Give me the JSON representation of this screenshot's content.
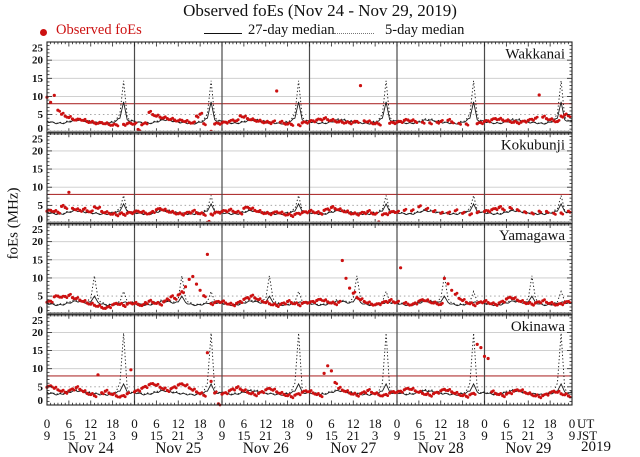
{
  "title": "Observed foEs (Nov 24 - Nov 29, 2019)",
  "legend": {
    "observed_label": "Observed foEs",
    "median27_label": "27-day median",
    "median5_label": "5-day median"
  },
  "axes": {
    "ylabel": "foEs (MHz)",
    "ut_label": "UT",
    "jst_label": "JST",
    "year_label": "2019",
    "y_tick_values": [
      0,
      5,
      10,
      15,
      20,
      25
    ],
    "ut_ticks_per_day": [
      "0",
      "6",
      "12",
      "18"
    ],
    "jst_ticks_per_day": [
      "9",
      "15",
      "21",
      "3"
    ],
    "ut_tick_last": "0",
    "jst_tick_last": "9",
    "day_labels": [
      "Nov 24",
      "Nov 25",
      "Nov 26",
      "Nov 27",
      "Nov 28",
      "Nov 29"
    ]
  },
  "colors": {
    "observed": "#cc1111",
    "threshold": "#b03535",
    "median": "#1a1a1a",
    "grid_solid": "#c9c9c9",
    "grid_dotted": "#9a9a9a",
    "separator_band": "#8f8f8f",
    "frame": "#222222",
    "day_separator": "#4a4a4a"
  },
  "chart_data": {
    "type": "scatter",
    "x_unit": "hours UT from 00:00 Nov 24 2019",
    "x_range_hours": [
      0,
      144
    ],
    "y_range_mhz": [
      0,
      25
    ],
    "cadence_hours": 1,
    "x_major_tick_interval_hours": 6,
    "day_separators_hours": [
      24,
      48,
      72,
      96,
      120
    ],
    "gridlines_solid_mhz": [
      10,
      15,
      20
    ],
    "gridline_dotted_mhz": 5,
    "panels": [
      {
        "station": "Wakkanai",
        "threshold_mhz": 8,
        "scatter_hourly_mhz": [
          9.8,
          8.4,
          10.3,
          6.2,
          5.1,
          4.6,
          4.2,
          3.8,
          3.5,
          3.7,
          3.4,
          3.1,
          2.9,
          2.7,
          2.6,
          2.8,
          2.5,
          2.3,
          2.1,
          2.2,
          null,
          2.3,
          2.5,
          2.6,
          2.4,
          0.9,
          2.2,
          2.7,
          5.6,
          5.0,
          4.6,
          4.3,
          4.1,
          3.9,
          3.7,
          3.5,
          3.3,
          3.4,
          3.1,
          2.9,
          2.7,
          4.6,
          5.1,
          2.5,
          null,
          0.4,
          2.4,
          2.6,
          2.7,
          2.9,
          3.1,
          3.5,
          3.3,
          4.7,
          4.3,
          3.9,
          3.6,
          3.4,
          3.2,
          3.0,
          2.9,
          2.8,
          3.0,
          11.5,
          2.9,
          2.6,
          2.4,
          2.3,
          null,
          2.2,
          2.7,
          2.9,
          3.1,
          3.3,
          3.5,
          3.7,
          3.9,
          3.6,
          3.4,
          3.2,
          3.0,
          2.9,
          2.8,
          2.7,
          2.9,
          3.1,
          13.0,
          3.3,
          3.0,
          2.7,
          2.5,
          2.4,
          null,
          null,
          2.6,
          2.8,
          2.9,
          3.1,
          3.4,
          3.5,
          3.3,
          3.1,
          null,
          2.9,
          null,
          2.7,
          null,
          2.9,
          3.1,
          null,
          3.4,
          3.0,
          null,
          2.6,
          null,
          2.4,
          null,
          null,
          2.5,
          2.8,
          3.1,
          3.3,
          3.6,
          3.9,
          3.7,
          3.5,
          3.3,
          3.1,
          2.9,
          2.8,
          2.9,
          3.2,
          3.4,
          3.7,
          4.0,
          10.4,
          4.3,
          3.9,
          3.6,
          3.3,
          3.1,
          4.6,
          4.9,
          4.7
        ],
        "median27_daily_mhz": [
          3.1,
          2.9,
          2.7,
          2.6,
          2.6,
          2.7,
          3.0,
          3.3,
          3.5,
          3.5,
          3.3,
          3.1,
          2.9,
          2.8,
          2.7,
          2.6,
          2.5,
          2.6,
          2.9,
          3.3,
          4.0,
          8.5,
          3.6,
          3.2
        ],
        "median5_daily_mhz": [
          3.3,
          3.0,
          2.8,
          2.7,
          2.7,
          2.9,
          3.2,
          3.6,
          3.8,
          3.8,
          3.5,
          3.3,
          3.1,
          2.9,
          2.8,
          2.7,
          2.6,
          2.8,
          3.1,
          3.7,
          5.2,
          14.3,
          4.4,
          3.4
        ]
      },
      {
        "station": "Kokubunji",
        "threshold_mhz": 8,
        "scatter_hourly_mhz": [
          3.4,
          3.6,
          3.3,
          3.1,
          4.7,
          4.4,
          8.6,
          4.2,
          3.8,
          3.6,
          3.9,
          3.5,
          3.2,
          4.6,
          4.2,
          3.3,
          3.0,
          2.8,
          2.6,
          2.4,
          2.7,
          2.5,
          2.8,
          3.0,
          3.2,
          3.4,
          3.1,
          2.9,
          2.7,
          3.3,
          3.8,
          4.1,
          3.7,
          3.4,
          3.1,
          2.9,
          2.7,
          2.6,
          2.8,
          3.1,
          3.4,
          3.0,
          2.7,
          2.5,
          0.3,
          2.6,
          2.9,
          3.1,
          3.3,
          3.5,
          3.7,
          3.4,
          3.1,
          2.9,
          4.2,
          4.5,
          4.0,
          3.6,
          3.3,
          3.0,
          2.8,
          2.7,
          2.9,
          3.2,
          2.9,
          2.6,
          2.4,
          2.2,
          2.5,
          2.8,
          3.0,
          3.2,
          3.4,
          3.2,
          3.0,
          2.8,
          3.6,
          4.0,
          4.4,
          4.1,
          3.8,
          3.5,
          3.2,
          2.9,
          2.7,
          2.6,
          2.8,
          3.0,
          3.3,
          2.9,
          2.6,
          0.4,
          2.4,
          2.7,
          3.0,
          3.3,
          3.1,
          null,
          3.6,
          null,
          3.5,
          null,
          4.6,
          null,
          3.9,
          null,
          3.3,
          null,
          2.8,
          null,
          2.9,
          null,
          3.5,
          null,
          2.8,
          null,
          2.4,
          null,
          3.0,
          null,
          3.3,
          3.5,
          3.8,
          4.1,
          4.4,
          4.0,
          null,
          4.4,
          null,
          3.8,
          null,
          3.2,
          null,
          2.9,
          null,
          3.4,
          null,
          3.3,
          null,
          2.8,
          null,
          2.9,
          null,
          3.4
        ],
        "median27_daily_mhz": [
          3.0,
          2.8,
          2.7,
          2.6,
          2.6,
          2.8,
          3.1,
          3.4,
          3.5,
          3.4,
          3.2,
          3.0,
          2.9,
          2.8,
          2.7,
          2.6,
          2.6,
          2.7,
          2.9,
          3.1,
          3.4,
          5.4,
          3.3,
          3.0
        ],
        "median5_daily_mhz": [
          3.2,
          3.0,
          2.8,
          2.7,
          2.8,
          3.0,
          3.3,
          3.6,
          3.8,
          3.7,
          3.4,
          3.2,
          3.0,
          2.9,
          2.8,
          2.7,
          2.7,
          2.8,
          3.1,
          3.4,
          4.0,
          7.7,
          3.6,
          3.1
        ]
      },
      {
        "station": "Yamagawa",
        "threshold_mhz": null,
        "scatter_hourly_mhz": [
          3.3,
          3.6,
          4.8,
          5.0,
          4.7,
          4.9,
          5.2,
          4.6,
          4.3,
          3.9,
          3.5,
          3.1,
          2.8,
          2.5,
          2.2,
          1.9,
          1.6,
          2.1,
          2.6,
          3.0,
          2.7,
          2.4,
          2.8,
          3.1,
          3.0,
          2.7,
          2.4,
          3.2,
          3.6,
          3.3,
          3.0,
          2.8,
          3.4,
          4.2,
          4.8,
          4.4,
          5.3,
          6.2,
          7.6,
          9.6,
          10.4,
          8.3,
          6.6,
          5.1,
          16.5,
          2.9,
          3.2,
          3.5,
          3.4,
          3.1,
          2.8,
          2.6,
          3.0,
          3.5,
          4.1,
          4.6,
          5.0,
          4.5,
          4.0,
          3.6,
          3.2,
          2.9,
          2.6,
          2.4,
          2.7,
          3.1,
          3.5,
          3.2,
          2.9,
          2.6,
          3.0,
          3.3,
          3.2,
          3.5,
          3.8,
          4.1,
          3.7,
          3.4,
          3.1,
          2.9,
          3.3,
          14.8,
          9.9,
          7.2,
          5.8,
          4.6,
          4.0,
          3.5,
          3.1,
          2.8,
          2.6,
          2.9,
          3.2,
          3.5,
          3.8,
          3.4,
          3.3,
          12.8,
          3.0,
          2.8,
          2.6,
          3.1,
          3.6,
          4.0,
          3.7,
          3.4,
          3.1,
          2.9,
          2.7,
          9.9,
          8.4,
          6.6,
          5.5,
          4.4,
          3.8,
          3.3,
          2.9,
          2.6,
          3.0,
          3.4,
          3.5,
          3.2,
          2.9,
          2.7,
          3.1,
          3.6,
          4.2,
          4.7,
          4.3,
          3.9,
          3.5,
          3.2,
          3.0,
          2.8,
          3.1,
          3.4,
          3.7,
          3.3,
          3.0,
          2.8,
          2.6,
          2.9,
          3.2,
          3.5
        ],
        "median27_daily_mhz": [
          3.0,
          2.8,
          2.6,
          2.5,
          2.6,
          2.8,
          3.1,
          3.4,
          3.6,
          3.5,
          3.3,
          3.1,
          3.4,
          5.0,
          3.3,
          2.8,
          2.6,
          2.5,
          2.6,
          2.8,
          3.0,
          3.3,
          3.2,
          3.1
        ],
        "median5_daily_mhz": [
          3.2,
          3.0,
          2.8,
          2.7,
          2.8,
          3.0,
          3.4,
          3.8,
          3.9,
          3.8,
          3.6,
          3.4,
          4.3,
          10.6,
          4.4,
          3.1,
          2.8,
          2.7,
          2.8,
          3.0,
          3.4,
          6.3,
          3.6,
          3.3
        ]
      },
      {
        "station": "Okinawa",
        "threshold_mhz": 8,
        "scatter_hourly_mhz": [
          4.9,
          5.3,
          4.6,
          4.2,
          3.8,
          3.5,
          3.9,
          4.4,
          4.8,
          4.3,
          3.7,
          3.2,
          2.9,
          2.6,
          8.3,
          3.4,
          3.8,
          3.3,
          2.9,
          2.5,
          2.2,
          2.6,
          3.1,
          9.7,
          3.6,
          4.1,
          4.6,
          5.1,
          5.6,
          5.9,
          5.4,
          4.9,
          4.4,
          4.0,
          4.5,
          5.0,
          5.5,
          5.8,
          5.3,
          4.7,
          4.1,
          3.6,
          3.1,
          2.7,
          14.4,
          6.5,
          3.3,
          0.3,
          3.0,
          3.4,
          3.9,
          4.4,
          4.8,
          4.4,
          3.9,
          3.5,
          3.1,
          2.8,
          3.2,
          3.7,
          4.2,
          4.6,
          4.1,
          3.6,
          3.2,
          2.9,
          2.6,
          2.3,
          2.7,
          3.1,
          3.5,
          3.9,
          3.7,
          3.3,
          2.9,
          2.6,
          8.7,
          10.8,
          9.4,
          6.2,
          4.6,
          4.1,
          3.7,
          3.3,
          3.0,
          2.7,
          3.1,
          3.6,
          4.0,
          3.5,
          3.1,
          2.8,
          2.5,
          2.9,
          3.3,
          3.7,
          3.5,
          3.8,
          4.2,
          4.6,
          4.3,
          3.9,
          3.5,
          3.2,
          2.9,
          2.7,
          3.1,
          3.5,
          3.9,
          4.3,
          4.0,
          3.6,
          3.2,
          2.9,
          2.6,
          2.4,
          2.8,
          3.2,
          16.7,
          15.8,
          13.4,
          12.8,
          3.6,
          3.2,
          2.9,
          2.6,
          3.0,
          3.4,
          3.8,
          4.2,
          3.9,
          3.5,
          3.1,
          2.8,
          2.5,
          2.3,
          2.6,
          3.0,
          3.4,
          3.8,
          3.5,
          3.1,
          2.8,
          2.5
        ],
        "median27_daily_mhz": [
          3.4,
          3.2,
          3.0,
          2.9,
          3.0,
          3.2,
          3.5,
          3.8,
          3.9,
          3.8,
          3.6,
          3.4,
          3.2,
          3.1,
          3.0,
          2.9,
          2.8,
          2.9,
          3.1,
          3.4,
          3.8,
          5.8,
          3.6,
          3.2
        ],
        "median5_daily_mhz": [
          3.6,
          3.4,
          3.2,
          3.1,
          3.2,
          3.4,
          3.8,
          4.1,
          4.2,
          4.1,
          3.9,
          3.6,
          3.4,
          3.2,
          3.1,
          3.0,
          2.9,
          3.0,
          3.3,
          3.8,
          6.0,
          19.8,
          4.6,
          3.4
        ]
      }
    ]
  }
}
